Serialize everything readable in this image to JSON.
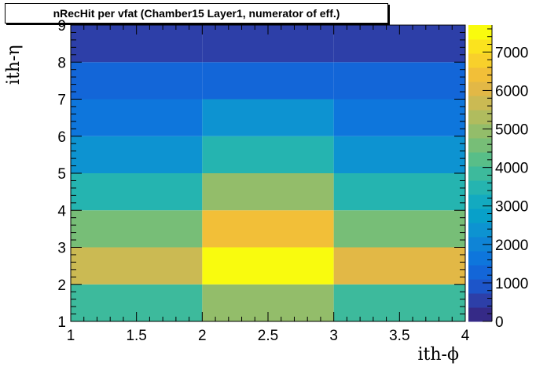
{
  "chart_data": {
    "type": "heatmap",
    "title": "nRecHit per vfat (Chamber15 Layer1, numerator of eff.)",
    "xlabel": "ith-ϕ",
    "ylabel": "ith-η",
    "xlim": [
      1,
      4
    ],
    "ylim": [
      1,
      9
    ],
    "x_ticks": [
      "1",
      "1.5",
      "2",
      "2.5",
      "3",
      "3.5",
      "4"
    ],
    "y_ticks": [
      "1",
      "2",
      "3",
      "4",
      "5",
      "6",
      "7",
      "8",
      "9"
    ],
    "x_bins": [
      [
        1,
        2
      ],
      [
        2,
        3
      ],
      [
        3,
        4
      ]
    ],
    "y_bins": [
      [
        1,
        2
      ],
      [
        2,
        3
      ],
      [
        3,
        4
      ],
      [
        4,
        5
      ],
      [
        5,
        6
      ],
      [
        6,
        7
      ],
      [
        7,
        8
      ],
      [
        8,
        9
      ]
    ],
    "z": [
      [
        3800,
        4900,
        3800
      ],
      [
        5600,
        7600,
        6100
      ],
      [
        4500,
        6500,
        4700
      ],
      [
        3400,
        4800,
        3300
      ],
      [
        2500,
        3500,
        2500
      ],
      [
        1800,
        2400,
        1800
      ],
      [
        1100,
        1400,
        1100
      ],
      [
        500,
        500,
        500
      ]
    ],
    "zlim": [
      0,
      7700
    ],
    "z_ticks": [
      "0",
      "1000",
      "2000",
      "3000",
      "4000",
      "5000",
      "6000",
      "7000"
    ],
    "colorbar_colors": [
      "#352a87",
      "#2d3fa8",
      "#1d55c9",
      "#1366d8",
      "#0e76dc",
      "#0f84d6",
      "#0d93d1",
      "#08a0c9",
      "#13aac0",
      "#25b4b0",
      "#3dba9c",
      "#58be88",
      "#77be77",
      "#93bd6a",
      "#b0bc5e",
      "#cbba53",
      "#e2b846",
      "#f2bf38",
      "#f8d02b",
      "#fbe31e",
      "#f9fb0e"
    ]
  }
}
